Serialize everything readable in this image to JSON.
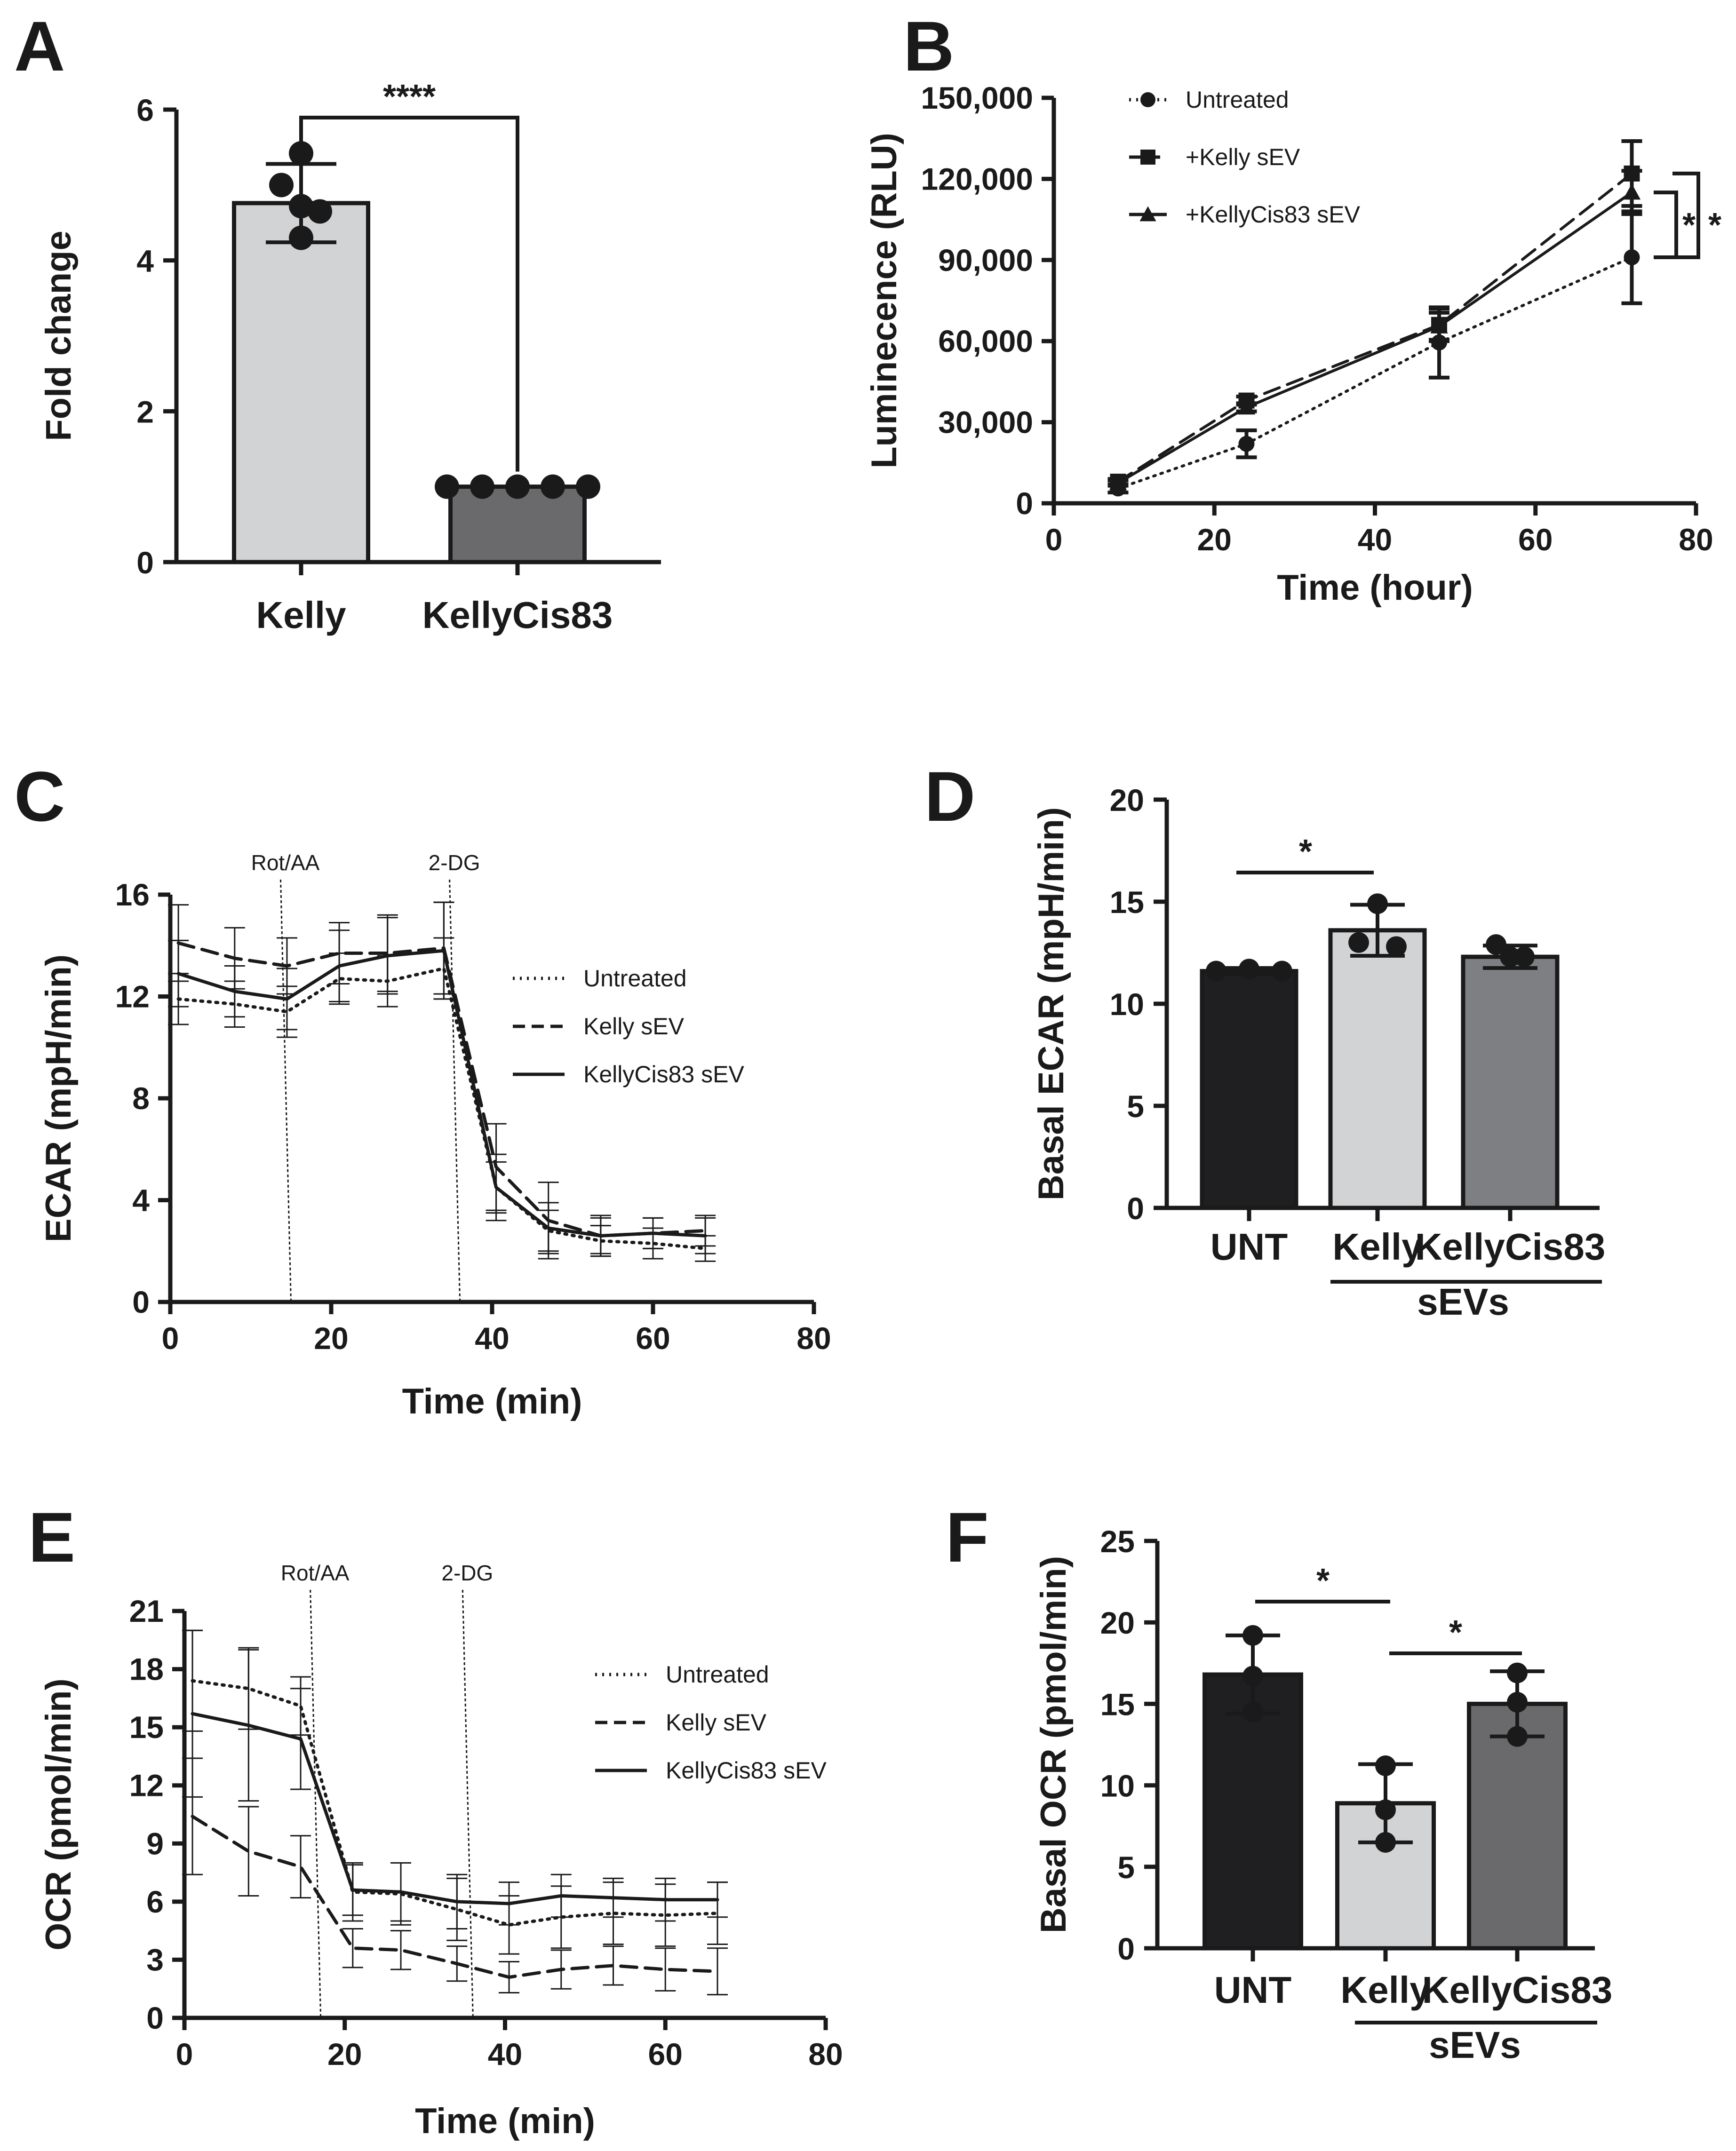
{
  "chart_data": [
    {
      "panel": "A",
      "type": "bar",
      "ylabel": "Fold change",
      "ylim": [
        0,
        6
      ],
      "yticks": [
        "0",
        "2",
        "4",
        "6"
      ],
      "categories": [
        "Kelly",
        "KellyCis83"
      ],
      "values": [
        4.76,
        1.0
      ],
      "sd": [
        0.52,
        0.0
      ],
      "points": [
        [
          5.42,
          5.0,
          4.72,
          4.3,
          4.65
        ],
        [
          1.0,
          1.0,
          1.0,
          1.0,
          1.0
        ]
      ],
      "bar_colors": [
        "#d2d3d5",
        "#6a6a6c"
      ],
      "significance": "****"
    },
    {
      "panel": "B",
      "type": "line",
      "xlabel": "Time (hour)",
      "ylabel": "Luminecence (RLU)",
      "xlim": [
        0,
        80
      ],
      "ylim": [
        0,
        150000
      ],
      "xticks": [
        "0",
        "20",
        "40",
        "60",
        "80"
      ],
      "yticks": [
        "0",
        "30,000",
        "60,000",
        "90,000",
        "120,000",
        "150,000"
      ],
      "x": [
        8,
        24,
        48,
        72
      ],
      "series": [
        {
          "name": "Untreated",
          "values": [
            5500,
            22000,
            59500,
            91000
          ],
          "sd": [
            1500,
            5000,
            13000,
            17000
          ],
          "marker": "circle",
          "dash": "dotted"
        },
        {
          "name": "+Kelly sEV",
          "values": [
            8000,
            38000,
            66000,
            122000
          ],
          "sd": [
            1000,
            1500,
            6000,
            12000
          ],
          "marker": "square",
          "dash": "dashed"
        },
        {
          "name": "+KellyCis83 sEV",
          "values": [
            7500,
            35500,
            65500,
            115000
          ],
          "sd": [
            1000,
            1500,
            5000,
            8000
          ],
          "marker": "triangle",
          "dash": "solid"
        }
      ],
      "significance": [
        "*",
        "*"
      ]
    },
    {
      "panel": "C",
      "type": "line",
      "xlabel": "Time (min)",
      "ylabel": "ECAR (mpH/min)",
      "xlim": [
        0,
        80
      ],
      "ylim": [
        0,
        16
      ],
      "xticks": [
        "0",
        "20",
        "40",
        "60",
        "80"
      ],
      "yticks": [
        "0",
        "4",
        "8",
        "12",
        "16"
      ],
      "x": [
        1,
        8,
        14.5,
        21,
        27,
        34,
        40.5,
        47,
        53.5,
        60,
        66.5
      ],
      "series": [
        {
          "name": "Untreated",
          "values": [
            11.9,
            11.7,
            11.4,
            12.7,
            12.6,
            13.1,
            4.5,
            2.8,
            2.4,
            2.3,
            2.1
          ],
          "sd": [
            1.0,
            0.9,
            1.0,
            1.0,
            1.0,
            1.2,
            1.0,
            0.8,
            0.6,
            0.6,
            0.5
          ],
          "dash": "dotted"
        },
        {
          "name": "Kelly sEV",
          "values": [
            14.1,
            13.5,
            13.2,
            13.7,
            13.7,
            13.9,
            5.3,
            3.2,
            2.6,
            2.7,
            2.8
          ],
          "sd": [
            1.5,
            1.2,
            1.1,
            1.2,
            1.5,
            1.8,
            1.7,
            1.5,
            0.8,
            0.6,
            0.6
          ],
          "dash": "dashed"
        },
        {
          "name": "KellyCis83 sEV",
          "values": [
            12.9,
            12.2,
            11.9,
            13.2,
            13.6,
            13.8,
            4.5,
            2.9,
            2.6,
            2.7,
            2.6
          ],
          "sd": [
            1.3,
            1.0,
            1.2,
            1.4,
            1.5,
            1.9,
            1.3,
            1.0,
            0.7,
            0.6,
            0.7
          ],
          "dash": "solid"
        }
      ],
      "annotations": [
        {
          "text": "Rot/AA",
          "x": 15
        },
        {
          "text": "2-DG",
          "x": 36
        }
      ]
    },
    {
      "panel": "D",
      "type": "bar",
      "ylabel": "Basal ECAR (mpH/min)",
      "ylim": [
        0,
        20
      ],
      "yticks": [
        "0",
        "5",
        "10",
        "15",
        "20"
      ],
      "categories": [
        "UNT",
        "Kelly",
        "KellyCis83"
      ],
      "group_label": "sEVs",
      "values": [
        11.6,
        13.6,
        12.3
      ],
      "sd": [
        0.15,
        1.25,
        0.55
      ],
      "points": [
        [
          11.6,
          11.7,
          11.6
        ],
        [
          14.9,
          13.0,
          12.8
        ],
        [
          12.9,
          12.3,
          12.3
        ]
      ],
      "bar_colors": [
        "#1f1e20",
        "#d2d3d5",
        "#7e7f82"
      ],
      "significance": "*"
    },
    {
      "panel": "E",
      "type": "line",
      "xlabel": "Time (min)",
      "ylabel": "OCR (pmol/min)",
      "xlim": [
        0,
        80
      ],
      "ylim": [
        0,
        21
      ],
      "xticks": [
        "0",
        "20",
        "40",
        "60",
        "80"
      ],
      "yticks": [
        "0",
        "3",
        "6",
        "9",
        "12",
        "15",
        "18",
        "21"
      ],
      "x": [
        1,
        8,
        14.5,
        21,
        27,
        34,
        40.5,
        47,
        53.5,
        60,
        66.5
      ],
      "series": [
        {
          "name": "Untreated",
          "values": [
            17.4,
            17.0,
            16.1,
            6.5,
            6.4,
            5.6,
            4.8,
            5.2,
            5.4,
            5.3,
            5.4
          ],
          "sd": [
            2.6,
            2.1,
            1.5,
            1.5,
            1.6,
            1.6,
            1.5,
            1.6,
            1.6,
            1.6,
            1.6
          ],
          "dash": "dotted"
        },
        {
          "name": "Kelly sEV",
          "values": [
            10.4,
            8.6,
            7.8,
            3.6,
            3.5,
            2.8,
            2.1,
            2.5,
            2.7,
            2.5,
            2.4
          ],
          "sd": [
            3.0,
            2.3,
            1.6,
            1.0,
            1.0,
            0.9,
            0.8,
            1.0,
            1.0,
            1.1,
            1.2
          ],
          "dash": "dashed"
        },
        {
          "name": "KellyCis83 sEV",
          "values": [
            15.7,
            15.1,
            14.4,
            6.6,
            6.5,
            6.0,
            5.9,
            6.3,
            6.2,
            6.1,
            6.1
          ],
          "sd": [
            4.3,
            3.9,
            2.6,
            1.3,
            1.5,
            1.4,
            1.1,
            1.1,
            1.0,
            1.1,
            0.9
          ],
          "dash": "solid"
        }
      ],
      "annotations": [
        {
          "text": "Rot/AA",
          "x": 17
        },
        {
          "text": "2-DG",
          "x": 36
        }
      ]
    },
    {
      "panel": "F",
      "type": "bar",
      "ylabel": "Basal OCR (pmol/min)",
      "ylim": [
        0,
        25
      ],
      "yticks": [
        "0",
        "5",
        "10",
        "15",
        "20",
        "25"
      ],
      "categories": [
        "UNT",
        "Kelly",
        "KellyCis83"
      ],
      "group_label": "sEVs",
      "values": [
        16.8,
        8.9,
        15.0
      ],
      "sd": [
        2.4,
        2.4,
        2.0
      ],
      "points": [
        [
          19.2,
          16.7,
          14.5
        ],
        [
          11.2,
          8.5,
          6.5
        ],
        [
          16.9,
          15.1,
          13.0
        ]
      ],
      "bar_colors": [
        "#1f1e20",
        "#d2d3d5",
        "#6a6a6c"
      ],
      "significance": [
        "*",
        "*"
      ]
    }
  ]
}
